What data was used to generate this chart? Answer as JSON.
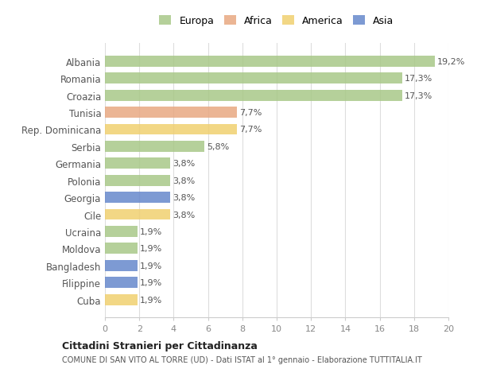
{
  "countries": [
    "Albania",
    "Romania",
    "Croazia",
    "Tunisia",
    "Rep. Dominicana",
    "Serbia",
    "Germania",
    "Polonia",
    "Georgia",
    "Cile",
    "Ucraina",
    "Moldova",
    "Bangladesh",
    "Filippine",
    "Cuba"
  ],
  "values": [
    19.2,
    17.3,
    17.3,
    7.7,
    7.7,
    5.8,
    3.8,
    3.8,
    3.8,
    3.8,
    1.9,
    1.9,
    1.9,
    1.9,
    1.9
  ],
  "labels": [
    "19,2%",
    "17,3%",
    "17,3%",
    "7,7%",
    "7,7%",
    "5,8%",
    "3,8%",
    "3,8%",
    "3,8%",
    "3,8%",
    "1,9%",
    "1,9%",
    "1,9%",
    "1,9%",
    "1,9%"
  ],
  "continents": [
    "Europa",
    "Europa",
    "Europa",
    "Africa",
    "America",
    "Europa",
    "Europa",
    "Europa",
    "Asia",
    "America",
    "Europa",
    "Europa",
    "Asia",
    "Asia",
    "America"
  ],
  "colors": {
    "Europa": "#a8c888",
    "Africa": "#e8a882",
    "America": "#f0d070",
    "Asia": "#6688cc"
  },
  "legend_order": [
    "Europa",
    "Africa",
    "America",
    "Asia"
  ],
  "title": "Cittadini Stranieri per Cittadinanza",
  "subtitle": "COMUNE DI SAN VITO AL TORRE (UD) - Dati ISTAT al 1° gennaio - Elaborazione TUTTITALIA.IT",
  "xlim": [
    0,
    20
  ],
  "xticks": [
    0,
    2,
    4,
    6,
    8,
    10,
    12,
    14,
    16,
    18,
    20
  ],
  "background_color": "#ffffff",
  "grid_color": "#dddddd"
}
